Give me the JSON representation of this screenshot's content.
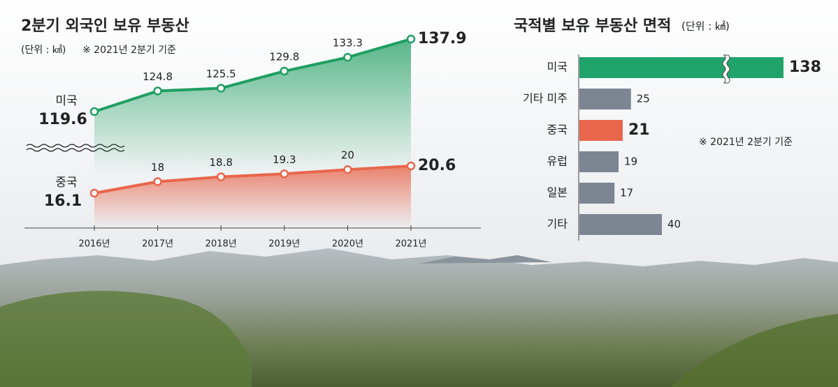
{
  "chart_data": [
    {
      "type": "line",
      "title": "2분기 외국인 보유 부동산",
      "unit": "(단위 : ㎢)",
      "note": "※ 2021년 2분기 기준",
      "categories": [
        "2016년",
        "2017년",
        "2018년",
        "2019년",
        "2020년",
        "2021년"
      ],
      "series": [
        {
          "name": "미국",
          "color": "#1f9e62",
          "values": [
            119.6,
            124.8,
            125.5,
            129.8,
            133.3,
            137.9
          ]
        },
        {
          "name": "중국",
          "color": "#e8664c",
          "values": [
            16.1,
            18,
            18.8,
            19.3,
            20,
            20.6
          ]
        }
      ]
    },
    {
      "type": "bar",
      "orientation": "horizontal",
      "title": "국적별 보유 부동산 면적",
      "unit": "(단위 : ㎢)",
      "note": "※ 2021년 2분기 기준",
      "categories": [
        "미국",
        "기타 미주",
        "중국",
        "유럽",
        "일본",
        "기타"
      ],
      "values": [
        138,
        25,
        21,
        19,
        17,
        40
      ],
      "colors": [
        "#1fa36b",
        "#7c8591",
        "#e8664c",
        "#7c8591",
        "#7c8591",
        "#7c8591"
      ]
    }
  ]
}
